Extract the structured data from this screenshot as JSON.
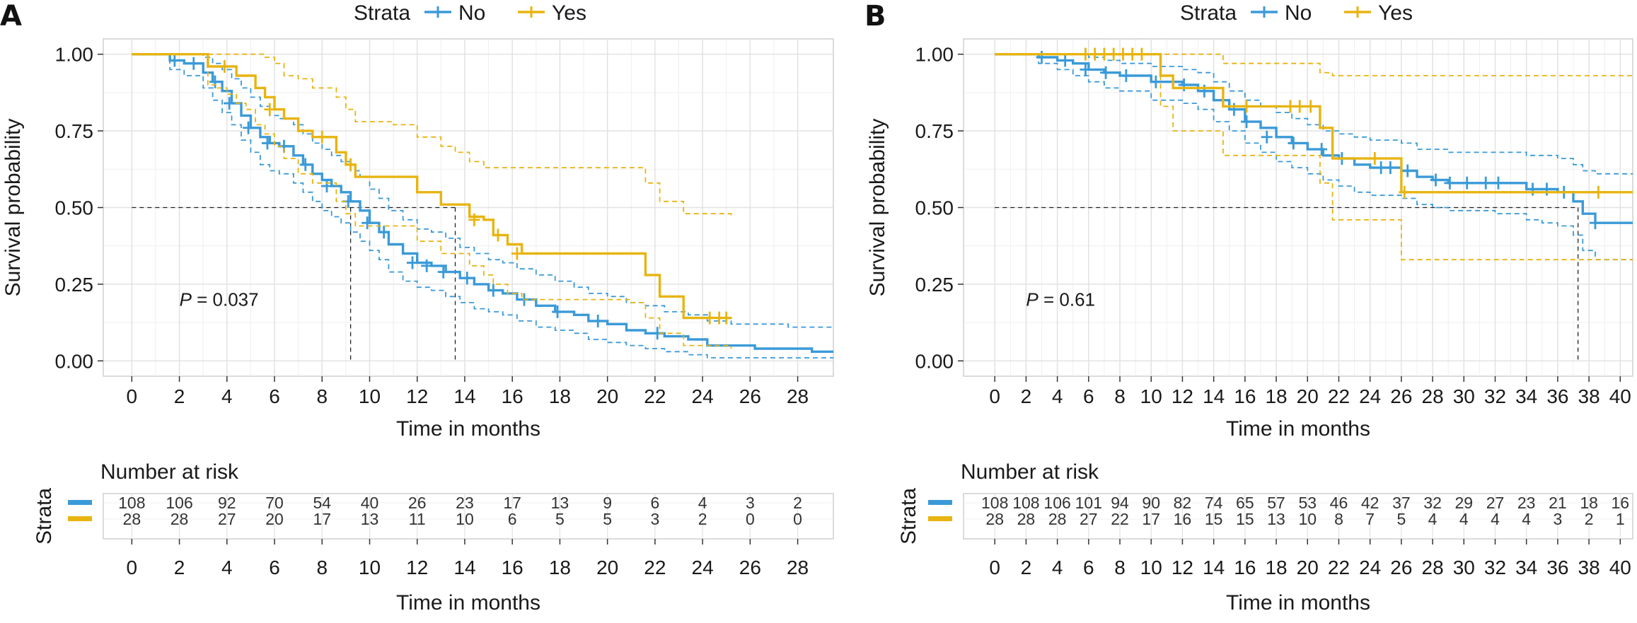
{
  "colors": {
    "no": "#3a9ad8",
    "yes": "#e8b410",
    "grid": "#e2e2e2",
    "panel_border": "#cfcfcf",
    "median": "#222222"
  },
  "chart_data": [
    {
      "type": "line",
      "panel_label": "A",
      "legend": {
        "title": "Strata",
        "entries": [
          "No",
          "Yes"
        ],
        "placement": "top"
      },
      "xlabel": "Time in months",
      "ylabel": "Survival probability",
      "xlim": [
        -1.2,
        29.5
      ],
      "ylim": [
        -0.05,
        1.05
      ],
      "x_ticks": [
        0,
        2,
        4,
        6,
        8,
        10,
        12,
        14,
        16,
        18,
        20,
        22,
        24,
        26,
        28
      ],
      "y_ticks": [
        0.0,
        0.25,
        0.5,
        0.75,
        1.0
      ],
      "y_tick_labels": [
        "0.00",
        "0.25",
        "0.50",
        "0.75",
        "1.00"
      ],
      "pvalue": {
        "label": "P",
        "text": " = 0.037"
      },
      "medians": [
        9.2,
        13.6
      ],
      "series": [
        {
          "name": "No",
          "x": [
            0,
            1.6,
            2.2,
            3.0,
            3.4,
            3.8,
            4.2,
            4.6,
            5.0,
            5.4,
            5.8,
            6.2,
            6.8,
            7.2,
            7.6,
            8.0,
            8.4,
            8.8,
            9.2,
            9.6,
            10.0,
            10.4,
            10.8,
            11.4,
            12.0,
            12.6,
            13.2,
            13.8,
            14.4,
            15.0,
            15.6,
            16.2,
            17.0,
            17.8,
            18.6,
            19.2,
            20.0,
            20.8,
            21.6,
            22.4,
            23.4,
            24.2,
            25.2,
            26.2,
            27.6,
            28.6,
            29.5
          ],
          "y": [
            1.0,
            0.98,
            0.97,
            0.94,
            0.91,
            0.88,
            0.84,
            0.8,
            0.76,
            0.73,
            0.71,
            0.7,
            0.67,
            0.64,
            0.61,
            0.59,
            0.57,
            0.55,
            0.52,
            0.49,
            0.45,
            0.42,
            0.38,
            0.35,
            0.32,
            0.31,
            0.29,
            0.27,
            0.25,
            0.23,
            0.22,
            0.2,
            0.18,
            0.16,
            0.15,
            0.13,
            0.12,
            0.1,
            0.09,
            0.08,
            0.07,
            0.05,
            0.05,
            0.04,
            0.04,
            0.03,
            0.03
          ],
          "ci_upper": [
            1.0,
            1.0,
            1.0,
            0.99,
            0.97,
            0.95,
            0.92,
            0.89,
            0.86,
            0.83,
            0.8,
            0.79,
            0.77,
            0.74,
            0.71,
            0.69,
            0.67,
            0.65,
            0.62,
            0.6,
            0.56,
            0.53,
            0.49,
            0.46,
            0.43,
            0.42,
            0.4,
            0.37,
            0.35,
            0.33,
            0.32,
            0.3,
            0.28,
            0.26,
            0.24,
            0.22,
            0.21,
            0.19,
            0.18,
            0.16,
            0.15,
            0.13,
            0.12,
            0.12,
            0.11,
            0.11,
            0.11
          ],
          "ci_lower": [
            1.0,
            0.95,
            0.93,
            0.89,
            0.85,
            0.81,
            0.77,
            0.72,
            0.68,
            0.64,
            0.62,
            0.61,
            0.58,
            0.55,
            0.52,
            0.49,
            0.47,
            0.45,
            0.42,
            0.39,
            0.36,
            0.33,
            0.29,
            0.26,
            0.24,
            0.23,
            0.21,
            0.19,
            0.17,
            0.16,
            0.15,
            0.13,
            0.11,
            0.1,
            0.09,
            0.07,
            0.06,
            0.05,
            0.04,
            0.03,
            0.02,
            0.01,
            0.01,
            0.01,
            0.01,
            0.01,
            0.01
          ],
          "censor_x": [
            1.8,
            2.6,
            3.5,
            4.1,
            4.9,
            5.7,
            6.4,
            7.3,
            8.2,
            9.1,
            9.9,
            10.6,
            11.8,
            12.4,
            13.1,
            14.1,
            15.2,
            16.5,
            17.9,
            19.6,
            22.1
          ],
          "censor_y": [
            0.98,
            0.97,
            0.91,
            0.84,
            0.76,
            0.71,
            0.7,
            0.64,
            0.57,
            0.52,
            0.45,
            0.42,
            0.32,
            0.31,
            0.29,
            0.27,
            0.23,
            0.2,
            0.16,
            0.13,
            0.09
          ]
        },
        {
          "name": "Yes",
          "x": [
            0,
            3.2,
            3.6,
            4.0,
            4.4,
            4.8,
            5.2,
            5.6,
            6.0,
            6.4,
            7.0,
            7.6,
            8.2,
            8.6,
            9.0,
            9.4,
            10.2,
            11.0,
            12.0,
            13.0,
            13.6,
            14.2,
            14.8,
            15.2,
            15.8,
            16.4,
            18.0,
            19.0,
            20.0,
            21.0,
            21.6,
            22.2,
            23.2,
            24.4,
            25.2
          ],
          "y": [
            1.0,
            0.96,
            0.96,
            0.96,
            0.93,
            0.93,
            0.89,
            0.86,
            0.82,
            0.79,
            0.75,
            0.73,
            0.73,
            0.68,
            0.64,
            0.6,
            0.6,
            0.6,
            0.55,
            0.51,
            0.51,
            0.47,
            0.46,
            0.41,
            0.38,
            0.35,
            0.35,
            0.35,
            0.35,
            0.35,
            0.28,
            0.21,
            0.14,
            0.14,
            0.14
          ],
          "ci_upper": [
            1.0,
            1.0,
            1.0,
            1.0,
            1.0,
            1.0,
            1.0,
            0.99,
            0.97,
            0.93,
            0.92,
            0.89,
            0.89,
            0.86,
            0.82,
            0.78,
            0.78,
            0.77,
            0.73,
            0.7,
            0.68,
            0.65,
            0.63,
            0.63,
            0.63,
            0.63,
            0.63,
            0.63,
            0.63,
            0.63,
            0.58,
            0.52,
            0.48,
            0.48,
            0.47
          ],
          "ci_lower": [
            1.0,
            0.9,
            0.89,
            0.87,
            0.84,
            0.82,
            0.77,
            0.74,
            0.7,
            0.66,
            0.61,
            0.58,
            0.58,
            0.52,
            0.48,
            0.44,
            0.44,
            0.44,
            0.39,
            0.35,
            0.35,
            0.31,
            0.28,
            0.25,
            0.22,
            0.2,
            0.2,
            0.2,
            0.2,
            0.19,
            0.14,
            0.09,
            0.05,
            0.05,
            0.04
          ],
          "censor_x": [
            3.9,
            5.8,
            8.0,
            9.2,
            14.4,
            15.4,
            16.2,
            24.3,
            24.7,
            25.0
          ],
          "censor_y": [
            0.96,
            0.82,
            0.73,
            0.64,
            0.46,
            0.41,
            0.35,
            0.14,
            0.14,
            0.14
          ]
        }
      ],
      "risk_table": {
        "title": "Number at risk",
        "strata_label": "Strata",
        "times": [
          0,
          2,
          4,
          6,
          8,
          10,
          12,
          14,
          16,
          18,
          20,
          22,
          24,
          26,
          28
        ],
        "rows": [
          {
            "name": "No",
            "values": [
              "108",
              "106",
              "92",
              "70",
              "54",
              "40",
              "26",
              "23",
              "17",
              "13",
              "9",
              "6",
              "4",
              "3",
              "2"
            ]
          },
          {
            "name": "Yes",
            "values": [
              "28",
              "28",
              "27",
              "20",
              "17",
              "13",
              "11",
              "10",
              "6",
              "5",
              "5",
              "3",
              "2",
              "0",
              "0"
            ]
          }
        ],
        "xlabel": "Time in months"
      }
    },
    {
      "type": "line",
      "panel_label": "B",
      "legend": {
        "title": "Strata",
        "entries": [
          "No",
          "Yes"
        ],
        "placement": "top"
      },
      "xlabel": "Time in months",
      "ylabel": "Survival probability",
      "xlim": [
        -2.0,
        40.8
      ],
      "ylim": [
        -0.05,
        1.05
      ],
      "x_ticks": [
        0,
        2,
        4,
        6,
        8,
        10,
        12,
        14,
        16,
        18,
        20,
        22,
        24,
        26,
        28,
        30,
        32,
        34,
        36,
        38,
        40
      ],
      "y_ticks": [
        0.0,
        0.25,
        0.5,
        0.75,
        1.0
      ],
      "y_tick_labels": [
        "0.00",
        "0.25",
        "0.50",
        "0.75",
        "1.00"
      ],
      "pvalue": {
        "label": "P",
        "text": " = 0.61"
      },
      "medians": [
        37.3
      ],
      "series": [
        {
          "name": "No",
          "x": [
            0,
            2.8,
            4.0,
            5.0,
            6.0,
            7.0,
            8.0,
            9.0,
            10.0,
            11.0,
            12.0,
            13.0,
            14.0,
            15.0,
            16.0,
            17.0,
            18.0,
            19.0,
            20.0,
            21.0,
            22.0,
            23.0,
            24.0,
            25.0,
            26.0,
            27.0,
            28.0,
            29.0,
            30.0,
            32.0,
            34.0,
            35.0,
            36.0,
            37.0,
            37.6,
            38.4,
            40.8
          ],
          "y": [
            1.0,
            0.99,
            0.98,
            0.97,
            0.95,
            0.94,
            0.93,
            0.93,
            0.91,
            0.91,
            0.9,
            0.88,
            0.85,
            0.82,
            0.78,
            0.76,
            0.73,
            0.71,
            0.69,
            0.67,
            0.66,
            0.64,
            0.63,
            0.63,
            0.62,
            0.6,
            0.59,
            0.58,
            0.58,
            0.58,
            0.56,
            0.56,
            0.55,
            0.52,
            0.48,
            0.45,
            0.45
          ],
          "ci_upper": [
            1.0,
            1.0,
            1.0,
            1.0,
            0.99,
            0.98,
            0.97,
            0.97,
            0.96,
            0.96,
            0.95,
            0.94,
            0.91,
            0.88,
            0.85,
            0.83,
            0.81,
            0.79,
            0.77,
            0.75,
            0.74,
            0.73,
            0.72,
            0.72,
            0.71,
            0.69,
            0.69,
            0.68,
            0.68,
            0.68,
            0.67,
            0.67,
            0.66,
            0.64,
            0.62,
            0.61,
            0.61
          ],
          "ci_lower": [
            1.0,
            0.97,
            0.95,
            0.93,
            0.91,
            0.89,
            0.88,
            0.88,
            0.85,
            0.85,
            0.84,
            0.82,
            0.78,
            0.75,
            0.71,
            0.68,
            0.65,
            0.63,
            0.61,
            0.59,
            0.57,
            0.55,
            0.54,
            0.54,
            0.53,
            0.51,
            0.5,
            0.49,
            0.49,
            0.48,
            0.46,
            0.45,
            0.44,
            0.41,
            0.36,
            0.33,
            0.33
          ],
          "censor_x": [
            3.0,
            4.5,
            5.8,
            7.1,
            8.4,
            10.3,
            12.1,
            13.4,
            15.3,
            16.1,
            17.4,
            19.1,
            20.9,
            22.2,
            24.7,
            25.3,
            26.4,
            28.2,
            29.1,
            30.2,
            31.4,
            32.2,
            34.4,
            35.3,
            36.4,
            38.4
          ],
          "censor_y": [
            0.99,
            0.98,
            0.95,
            0.94,
            0.93,
            0.91,
            0.9,
            0.88,
            0.82,
            0.78,
            0.73,
            0.71,
            0.69,
            0.66,
            0.63,
            0.63,
            0.62,
            0.59,
            0.58,
            0.58,
            0.58,
            0.58,
            0.56,
            0.56,
            0.55,
            0.45
          ]
        },
        {
          "name": "Yes",
          "x": [
            0,
            9.8,
            10.6,
            11.4,
            12.4,
            13.8,
            14.6,
            18.0,
            19.0,
            20.0,
            20.8,
            21.6,
            22.8,
            24.0,
            25.2,
            26.0,
            30.0,
            34.0,
            36.0,
            37.5,
            38.6,
            40.8
          ],
          "y": [
            1.0,
            1.0,
            0.93,
            0.89,
            0.89,
            0.89,
            0.83,
            0.83,
            0.83,
            0.83,
            0.76,
            0.66,
            0.66,
            0.66,
            0.66,
            0.55,
            0.55,
            0.55,
            0.55,
            0.55,
            0.55,
            0.55
          ],
          "ci_upper": [
            1.0,
            1.0,
            1.0,
            1.0,
            1.0,
            1.0,
            0.97,
            0.97,
            0.97,
            0.97,
            0.94,
            0.93,
            0.93,
            0.93,
            0.93,
            0.93,
            0.93,
            0.93,
            0.93,
            0.93,
            0.93,
            0.93
          ],
          "ci_lower": [
            1.0,
            1.0,
            0.83,
            0.75,
            0.75,
            0.75,
            0.67,
            0.67,
            0.67,
            0.67,
            0.58,
            0.46,
            0.46,
            0.46,
            0.46,
            0.33,
            0.33,
            0.33,
            0.33,
            0.33,
            0.33,
            0.33
          ],
          "censor_x": [
            5.8,
            6.4,
            7.0,
            7.6,
            8.2,
            8.8,
            9.4,
            16.1,
            18.9,
            19.5,
            20.2,
            24.3,
            26.2,
            38.6
          ],
          "censor_y": [
            1.0,
            1.0,
            1.0,
            1.0,
            1.0,
            1.0,
            1.0,
            0.83,
            0.83,
            0.83,
            0.83,
            0.66,
            0.55,
            0.55
          ]
        }
      ],
      "risk_table": {
        "title": "Number at risk",
        "strata_label": "Strata",
        "times": [
          0,
          2,
          4,
          6,
          8,
          10,
          12,
          14,
          16,
          18,
          20,
          22,
          24,
          26,
          28,
          30,
          32,
          34,
          36,
          38,
          40
        ],
        "rows": [
          {
            "name": "No",
            "values": [
              "108",
              "108",
              "106",
              "101",
              "94",
              "90",
              "82",
              "74",
              "65",
              "57",
              "53",
              "46",
              "42",
              "37",
              "32",
              "29",
              "27",
              "23",
              "21",
              "18",
              "16"
            ]
          },
          {
            "name": "Yes",
            "values": [
              "28",
              "28",
              "28",
              "27",
              "22",
              "17",
              "16",
              "15",
              "15",
              "13",
              "10",
              "8",
              "7",
              "5",
              "4",
              "4",
              "4",
              "4",
              "3",
              "2",
              "1"
            ]
          }
        ],
        "xlabel": "Time in months"
      }
    }
  ]
}
